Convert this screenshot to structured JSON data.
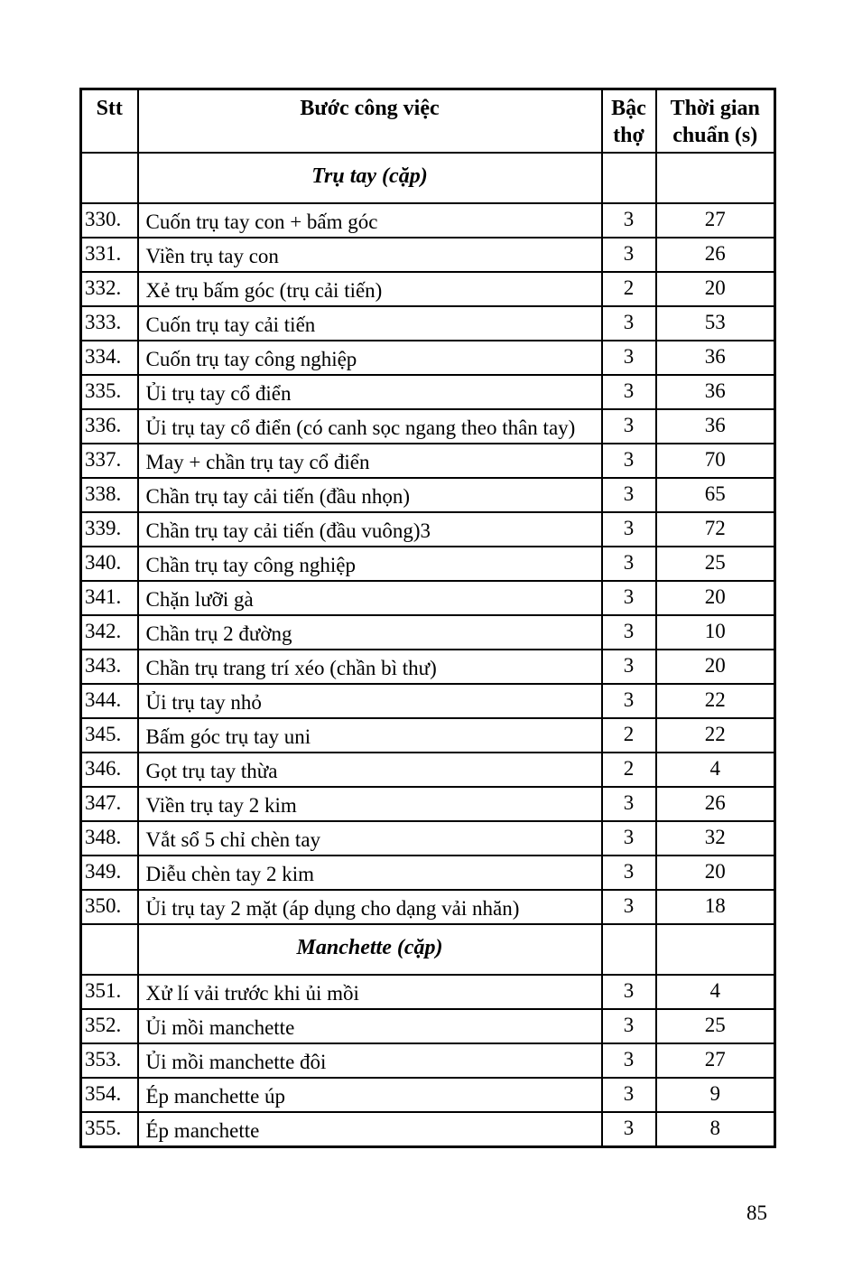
{
  "page": {
    "number": "85"
  },
  "table": {
    "headers": [
      "Stt",
      "Bước công việc",
      "Bậc thợ",
      "Thời gian chuẩn (s)"
    ],
    "sections": [
      {
        "title": "Trụ tay (cặp)",
        "rows": [
          {
            "stt": "330.",
            "task": "Cuốn trụ tay con + bấm góc",
            "level": "3",
            "time": "27"
          },
          {
            "stt": "331.",
            "task": "Viền trụ tay con",
            "level": "3",
            "time": "26"
          },
          {
            "stt": "332.",
            "task": "Xẻ trụ bấm góc (trụ cải tiến)",
            "level": "2",
            "time": "20"
          },
          {
            "stt": "333.",
            "task": "Cuốn trụ tay cải tiến",
            "level": "3",
            "time": "53"
          },
          {
            "stt": "334.",
            "task": "Cuốn trụ tay công nghiệp",
            "level": "3",
            "time": "36"
          },
          {
            "stt": "335.",
            "task": "Ủi trụ tay cổ điển",
            "level": "3",
            "time": "36"
          },
          {
            "stt": "336.",
            "task": "Ủi trụ tay cổ điển (có canh sọc ngang theo thân tay)",
            "level": "3",
            "time": "36"
          },
          {
            "stt": "337.",
            "task": "May + chần trụ tay cổ điển",
            "level": "3",
            "time": "70"
          },
          {
            "stt": "338.",
            "task": "Chần trụ tay cải tiến (đầu nhọn)",
            "level": "3",
            "time": "65"
          },
          {
            "stt": "339.",
            "task": "Chần trụ tay cải tiến (đầu vuông)3",
            "level": "3",
            "time": "72"
          },
          {
            "stt": "340.",
            "task": "Chần trụ tay công nghiệp",
            "level": "3",
            "time": "25"
          },
          {
            "stt": "341.",
            "task": "Chặn lưỡi gà",
            "level": "3",
            "time": "20"
          },
          {
            "stt": "342.",
            "task": "Chần trụ 2 đường",
            "level": "3",
            "time": "10"
          },
          {
            "stt": "343.",
            "task": "Chần trụ trang trí xéo (chần bì thư)",
            "level": "3",
            "time": "20"
          },
          {
            "stt": "344.",
            "task": "Ủi trụ tay nhỏ",
            "level": "3",
            "time": "22"
          },
          {
            "stt": "345.",
            "task": "Bấm góc trụ tay uni",
            "level": "2",
            "time": "22"
          },
          {
            "stt": "346.",
            "task": "Gọt trụ tay thừa",
            "level": "2",
            "time": "4"
          },
          {
            "stt": "347.",
            "task": "Viền trụ tay 2 kim",
            "level": "3",
            "time": "26"
          },
          {
            "stt": "348.",
            "task": "Vắt sổ 5 chỉ chèn tay",
            "level": "3",
            "time": "32"
          },
          {
            "stt": "349.",
            "task": "Diễu chèn tay 2 kim",
            "level": "3",
            "time": "20"
          },
          {
            "stt": "350.",
            "task": "Ủi trụ tay 2 mặt (áp dụng cho dạng vải nhăn)",
            "level": "3",
            "time": "18"
          }
        ]
      },
      {
        "title": "Manchette (cặp)",
        "rows": [
          {
            "stt": "351.",
            "task": "Xử lí vải trước khi ủi mồi",
            "level": "3",
            "time": "4"
          },
          {
            "stt": "352.",
            "task": "Ủi mồi manchette",
            "level": "3",
            "time": "25"
          },
          {
            "stt": "353.",
            "task": "Ủi mồi manchette đôi",
            "level": "3",
            "time": "27"
          },
          {
            "stt": "354.",
            "task": "Ép manchette úp",
            "level": "3",
            "time": "9"
          },
          {
            "stt": "355.",
            "task": "Ép manchette",
            "level": "3",
            "time": "8"
          }
        ]
      }
    ]
  }
}
